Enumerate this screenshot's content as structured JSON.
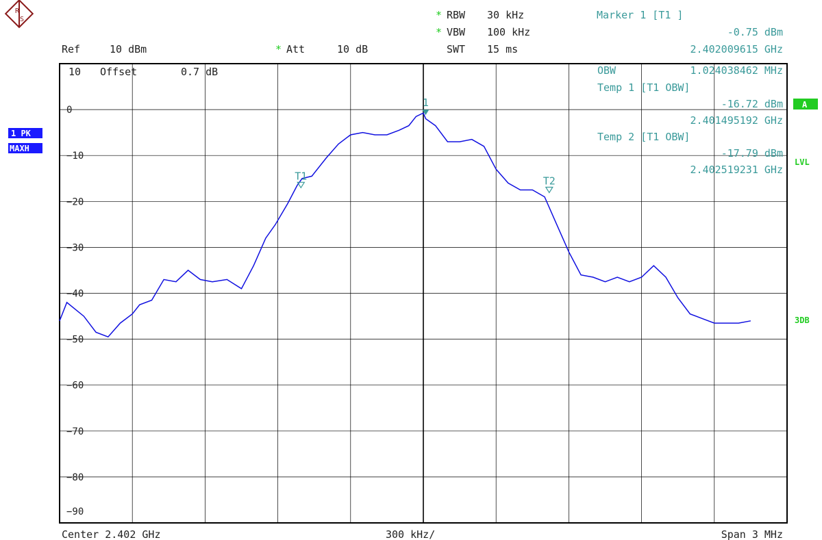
{
  "header": {
    "ref": "Ref",
    "ref_value": "10 dBm",
    "att_star": "*",
    "att": "Att",
    "att_value": "10 dB",
    "rbw_star": "*",
    "rbw": "RBW",
    "rbw_value": "30 kHz",
    "vbw_star": "*",
    "vbw": "VBW",
    "vbw_value": "100 kHz",
    "swt": "SWT",
    "swt_value": "15 ms"
  },
  "marker": {
    "title": "Marker 1 [T1 ]",
    "level": "-0.75 dBm",
    "freq": "2.402009615 GHz"
  },
  "obw": {
    "label": "OBW",
    "value": "1.024038462 MHz",
    "temp1_label": "Temp 1 [T1 OBW]",
    "temp1_level": "-16.72 dBm",
    "temp1_freq": "2.401495192 GHz",
    "temp2_label": "Temp 2 [T1 OBW]",
    "temp2_level": "-17.79 dBm",
    "temp2_freq": "2.402519231 GHz"
  },
  "offset": {
    "top": "10",
    "label": "Offset",
    "value": "0.7 dB"
  },
  "side_badges": {
    "pk": "1 PK",
    "maxh": "MAXH",
    "a": "A",
    "lvl": "LVL",
    "db3": "3DB"
  },
  "footer": {
    "center": "Center 2.402 GHz",
    "div": "300 kHz/",
    "span": "Span 3 MHz"
  },
  "colors": {
    "trace": "#1010e0",
    "marker": "#3a9a9a",
    "grid": "#000000",
    "badge_blue": "#1a1aff",
    "badge_green": "#22cc22"
  },
  "chart_data": {
    "type": "line",
    "x_unit": "GHz",
    "y_unit": "dBm",
    "xlim": [
      2.4005,
      2.4035
    ],
    "ylim": [
      -90,
      10
    ],
    "y_ticks": [
      "0",
      "-10",
      "-20",
      "-30",
      "-40",
      "-50",
      "-60",
      "-70",
      "-80",
      "-90"
    ],
    "grid": true,
    "series": [
      {
        "x": [
          2.4005,
          2.40053,
          2.4006,
          2.40065,
          2.4007,
          2.40075,
          2.4008,
          2.40083,
          2.40088,
          2.40093,
          2.40098,
          2.40103,
          2.40108,
          2.40113,
          2.40119,
          2.40125,
          2.4013,
          2.40135,
          2.40139,
          2.40144,
          2.40148,
          2.4015,
          2.40154,
          2.4016,
          2.40165,
          2.4017,
          2.40175,
          2.4018,
          2.40185,
          2.4019,
          2.40194,
          2.40197,
          2.402,
          2.40201,
          2.40205,
          2.4021,
          2.40215,
          2.4022,
          2.40225,
          2.4023,
          2.40235,
          2.4024,
          2.40245,
          2.4025,
          2.40255,
          2.4026,
          2.40265,
          2.4027,
          2.40275,
          2.4028,
          2.40285,
          2.4029,
          2.40295,
          2.403,
          2.40305,
          2.4031,
          2.40315,
          2.4032,
          2.40325,
          2.4033,
          2.40335
        ],
        "y": [
          -46,
          -42,
          -45,
          -48.5,
          -49.5,
          -46.5,
          -44.5,
          -42.5,
          -41.5,
          -37,
          -37.5,
          -35,
          -37,
          -37.5,
          -37,
          -39,
          -34,
          -28,
          -25,
          -20.5,
          -16.5,
          -15,
          -14.5,
          -10.5,
          -7.5,
          -5.5,
          -5,
          -5.5,
          -5.5,
          -4.5,
          -3.5,
          -1.5,
          -0.75,
          -2,
          -3.5,
          -7,
          -7,
          -6.5,
          -8,
          -13,
          -16,
          -17.5,
          -17.5,
          -19,
          -25,
          -31,
          -36,
          -36.5,
          -37.5,
          -36.5,
          -37.5,
          -36.5,
          -34,
          -36.5,
          -41,
          -44.5,
          -45.5,
          -46.5,
          -46.5,
          -46.5,
          -46
        ]
      }
    ],
    "markers": [
      {
        "label": "1",
        "x": 2.402009615,
        "y": -0.75
      },
      {
        "label": "T1",
        "x": 2.401495192,
        "y": -16.72
      },
      {
        "label": "T2",
        "x": 2.402519231,
        "y": -17.79
      }
    ]
  }
}
